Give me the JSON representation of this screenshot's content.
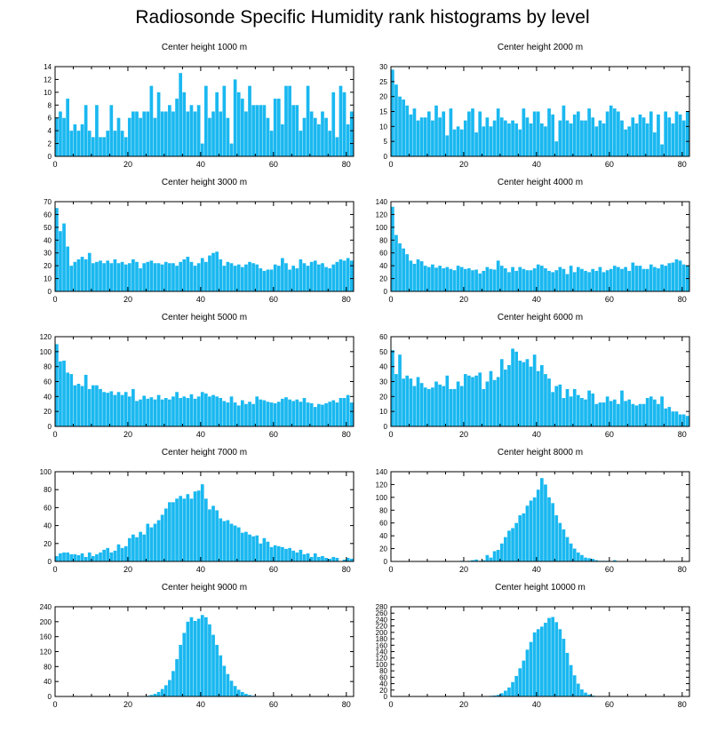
{
  "title": "Radiosonde Specific Humidity rank histograms by level",
  "bar_color": "#1ab8f0",
  "chart_data": [
    {
      "type": "bar",
      "title": "Center height 1000 m",
      "xlim": [
        0,
        82
      ],
      "ylim": [
        0,
        14
      ],
      "xticks": [
        0,
        20,
        40,
        60,
        80
      ],
      "yticks": [
        0,
        2,
        4,
        6,
        8,
        10,
        12,
        14
      ],
      "values": [
        6,
        7,
        6,
        9,
        4,
        5,
        4,
        5,
        8,
        4,
        3,
        8,
        3,
        3,
        4,
        8,
        4,
        6,
        4,
        3,
        6,
        7,
        7,
        6,
        7,
        7,
        11,
        6,
        10,
        7,
        7,
        8,
        7,
        9,
        13,
        10,
        7,
        8,
        7,
        8,
        2,
        11,
        6,
        7,
        10,
        7,
        11,
        6,
        2,
        12,
        10,
        9,
        7,
        11,
        8,
        8,
        8,
        8,
        6,
        4,
        9,
        9,
        5,
        11,
        11,
        8,
        8,
        4,
        6,
        11,
        7,
        6,
        5,
        7,
        6,
        4,
        10,
        3,
        11,
        10,
        5,
        7
      ]
    },
    {
      "type": "bar",
      "title": "Center height 2000 m",
      "xlim": [
        0,
        82
      ],
      "ylim": [
        0,
        30
      ],
      "xticks": [
        0,
        20,
        40,
        60,
        80
      ],
      "yticks": [
        0,
        5,
        10,
        15,
        20,
        25,
        30
      ],
      "values": [
        29,
        24,
        20,
        19,
        17,
        14,
        16,
        12,
        13,
        13,
        15,
        12,
        17,
        13,
        15,
        7,
        16,
        9,
        10,
        9,
        12,
        15,
        16,
        8,
        15,
        10,
        13,
        10,
        12,
        16,
        13,
        12,
        11,
        12,
        11,
        9,
        16,
        13,
        11,
        15,
        15,
        11,
        10,
        16,
        14,
        5,
        12,
        17,
        12,
        11,
        14,
        15,
        12,
        12,
        16,
        13,
        10,
        12,
        11,
        15,
        17,
        16,
        15,
        12,
        9,
        10,
        13,
        11,
        14,
        13,
        11,
        15,
        8,
        14,
        4,
        15,
        13,
        11,
        15,
        14,
        12,
        15
      ]
    },
    {
      "type": "bar",
      "title": "Center height 3000 m",
      "xlim": [
        0,
        82
      ],
      "ylim": [
        0,
        70
      ],
      "xticks": [
        0,
        20,
        40,
        60,
        80
      ],
      "yticks": [
        0,
        10,
        20,
        30,
        40,
        50,
        60,
        70
      ],
      "values": [
        65,
        47,
        53,
        35,
        20,
        23,
        25,
        27,
        25,
        30,
        22,
        23,
        24,
        22,
        24,
        22,
        25,
        22,
        23,
        21,
        22,
        25,
        23,
        18,
        22,
        23,
        24,
        22,
        22,
        21,
        23,
        22,
        22,
        20,
        23,
        25,
        27,
        23,
        20,
        22,
        26,
        23,
        28,
        30,
        31,
        25,
        20,
        23,
        22,
        20,
        21,
        19,
        21,
        23,
        22,
        21,
        18,
        16,
        17,
        17,
        21,
        20,
        26,
        22,
        17,
        20,
        18,
        25,
        22,
        20,
        23,
        24,
        21,
        22,
        19,
        18,
        21,
        23,
        25,
        24,
        26,
        24
      ]
    },
    {
      "type": "bar",
      "title": "Center height 4000 m",
      "xlim": [
        0,
        82
      ],
      "ylim": [
        0,
        140
      ],
      "xticks": [
        0,
        20,
        40,
        60,
        80
      ],
      "yticks": [
        0,
        20,
        40,
        60,
        80,
        100,
        120,
        140
      ],
      "values": [
        132,
        88,
        75,
        67,
        58,
        48,
        43,
        50,
        47,
        40,
        38,
        42,
        37,
        40,
        36,
        38,
        35,
        33,
        40,
        38,
        35,
        36,
        33,
        34,
        28,
        32,
        38,
        35,
        34,
        48,
        40,
        36,
        30,
        38,
        32,
        38,
        35,
        33,
        33,
        36,
        42,
        40,
        36,
        32,
        30,
        33,
        38,
        35,
        27,
        40,
        30,
        38,
        35,
        32,
        30,
        35,
        32,
        38,
        30,
        33,
        35,
        40,
        38,
        35,
        38,
        32,
        45,
        40,
        40,
        35,
        35,
        42,
        38,
        36,
        42,
        40,
        44,
        45,
        50,
        48,
        42,
        40
      ]
    },
    {
      "type": "bar",
      "title": "Center height 5000 m",
      "xlim": [
        0,
        82
      ],
      "ylim": [
        0,
        120
      ],
      "xticks": [
        0,
        20,
        40,
        60,
        80
      ],
      "yticks": [
        0,
        20,
        40,
        60,
        80,
        100,
        120
      ],
      "values": [
        110,
        87,
        88,
        72,
        70,
        55,
        57,
        54,
        69,
        50,
        55,
        55,
        50,
        46,
        45,
        47,
        42,
        46,
        42,
        46,
        40,
        50,
        34,
        36,
        41,
        37,
        39,
        36,
        42,
        36,
        38,
        36,
        40,
        46,
        38,
        40,
        38,
        43,
        37,
        40,
        46,
        44,
        40,
        42,
        40,
        38,
        34,
        32,
        40,
        32,
        28,
        35,
        30,
        33,
        30,
        40,
        36,
        35,
        33,
        32,
        31,
        33,
        37,
        39,
        36,
        34,
        36,
        33,
        38,
        32,
        31,
        26,
        30,
        29,
        31,
        33,
        35,
        32,
        38,
        38,
        42,
        32
      ]
    },
    {
      "type": "bar",
      "title": "Center height 6000 m",
      "xlim": [
        0,
        82
      ],
      "ylim": [
        0,
        60
      ],
      "xticks": [
        0,
        20,
        40,
        60,
        80
      ],
      "yticks": [
        0,
        10,
        20,
        30,
        40,
        50,
        60
      ],
      "values": [
        51,
        35,
        48,
        32,
        34,
        32,
        27,
        33,
        29,
        26,
        25,
        26,
        30,
        28,
        27,
        34,
        25,
        25,
        30,
        27,
        35,
        34,
        33,
        34,
        36,
        25,
        30,
        37,
        31,
        33,
        45,
        38,
        41,
        52,
        50,
        44,
        43,
        45,
        40,
        48,
        37,
        41,
        35,
        32,
        23,
        27,
        28,
        19,
        25,
        20,
        25,
        21,
        19,
        18,
        24,
        22,
        15,
        16,
        16,
        20,
        17,
        18,
        15,
        24,
        17,
        18,
        15,
        14,
        15,
        15,
        19,
        20,
        18,
        15,
        20,
        12,
        13,
        10,
        10,
        8,
        8,
        7
      ]
    },
    {
      "type": "bar",
      "title": "Center height 7000 m",
      "xlim": [
        0,
        82
      ],
      "ylim": [
        0,
        100
      ],
      "xticks": [
        0,
        20,
        40,
        60,
        80
      ],
      "yticks": [
        0,
        20,
        40,
        60,
        80,
        100
      ],
      "values": [
        6,
        9,
        10,
        10,
        8,
        8,
        7,
        9,
        5,
        10,
        6,
        8,
        10,
        13,
        15,
        10,
        12,
        19,
        15,
        17,
        26,
        30,
        27,
        33,
        30,
        42,
        38,
        42,
        46,
        52,
        59,
        66,
        66,
        70,
        73,
        70,
        75,
        70,
        78,
        79,
        86,
        70,
        58,
        62,
        57,
        48,
        45,
        46,
        42,
        40,
        38,
        32,
        33,
        30,
        28,
        29,
        20,
        26,
        22,
        16,
        18,
        17,
        16,
        14,
        15,
        12,
        10,
        13,
        8,
        9,
        5,
        9,
        5,
        6,
        4,
        3,
        5,
        4,
        0,
        2,
        4,
        3
      ]
    },
    {
      "type": "bar",
      "title": "Center height 8000 m",
      "xlim": [
        0,
        82
      ],
      "ylim": [
        0,
        140
      ],
      "xticks": [
        0,
        20,
        40,
        60,
        80
      ],
      "yticks": [
        0,
        20,
        40,
        60,
        80,
        100,
        120,
        140
      ],
      "values": [
        0,
        0,
        0,
        0,
        0,
        0,
        0,
        0,
        0,
        0,
        0,
        0,
        0,
        0,
        0,
        0,
        0,
        0,
        0,
        1,
        0,
        1,
        2,
        3,
        1,
        2,
        10,
        6,
        16,
        18,
        28,
        38,
        48,
        52,
        60,
        72,
        75,
        87,
        95,
        100,
        112,
        130,
        120,
        100,
        91,
        72,
        60,
        50,
        38,
        28,
        20,
        14,
        10,
        6,
        5,
        4,
        2,
        1,
        1,
        1,
        0,
        2,
        0,
        0,
        0,
        0,
        0,
        0,
        0,
        0,
        0,
        0,
        0,
        0,
        0,
        0,
        0,
        0,
        0,
        0,
        0,
        0
      ]
    },
    {
      "type": "bar",
      "title": "Center height 9000 m",
      "xlim": [
        0,
        82
      ],
      "ylim": [
        0,
        240
      ],
      "xticks": [
        0,
        20,
        40,
        60,
        80
      ],
      "yticks": [
        0,
        40,
        80,
        120,
        160,
        200,
        240
      ],
      "values": [
        0,
        0,
        0,
        0,
        0,
        0,
        0,
        0,
        0,
        0,
        0,
        0,
        0,
        0,
        0,
        0,
        0,
        0,
        0,
        0,
        0,
        0,
        0,
        0,
        1,
        2,
        4,
        7,
        12,
        20,
        30,
        44,
        68,
        100,
        138,
        170,
        200,
        212,
        202,
        208,
        218,
        212,
        193,
        165,
        138,
        110,
        82,
        60,
        42,
        28,
        18,
        12,
        7,
        4,
        2,
        1,
        0,
        0,
        0,
        0,
        0,
        0,
        0,
        0,
        0,
        0,
        0,
        0,
        0,
        0,
        0,
        0,
        0,
        0,
        0,
        0,
        0,
        0,
        0,
        0,
        0,
        0
      ]
    },
    {
      "type": "bar",
      "title": "Center height 10000 m",
      "xlim": [
        0,
        82
      ],
      "ylim": [
        0,
        280
      ],
      "xticks": [
        0,
        20,
        40,
        60,
        80
      ],
      "yticks": [
        0,
        20,
        40,
        60,
        80,
        100,
        120,
        140,
        160,
        180,
        200,
        220,
        240,
        260,
        280
      ],
      "values": [
        0,
        0,
        0,
        0,
        0,
        0,
        0,
        0,
        0,
        0,
        0,
        0,
        0,
        0,
        0,
        0,
        0,
        0,
        0,
        0,
        0,
        0,
        0,
        0,
        0,
        0,
        1,
        2,
        3,
        5,
        10,
        18,
        28,
        45,
        64,
        88,
        112,
        146,
        170,
        200,
        210,
        218,
        230,
        245,
        248,
        232,
        210,
        180,
        136,
        98,
        66,
        40,
        22,
        12,
        6,
        3,
        1,
        0,
        0,
        0,
        0,
        0,
        0,
        0,
        0,
        0,
        0,
        0,
        0,
        0,
        0,
        0,
        0,
        0,
        0,
        0,
        0,
        0,
        0,
        0,
        0,
        0
      ]
    }
  ]
}
